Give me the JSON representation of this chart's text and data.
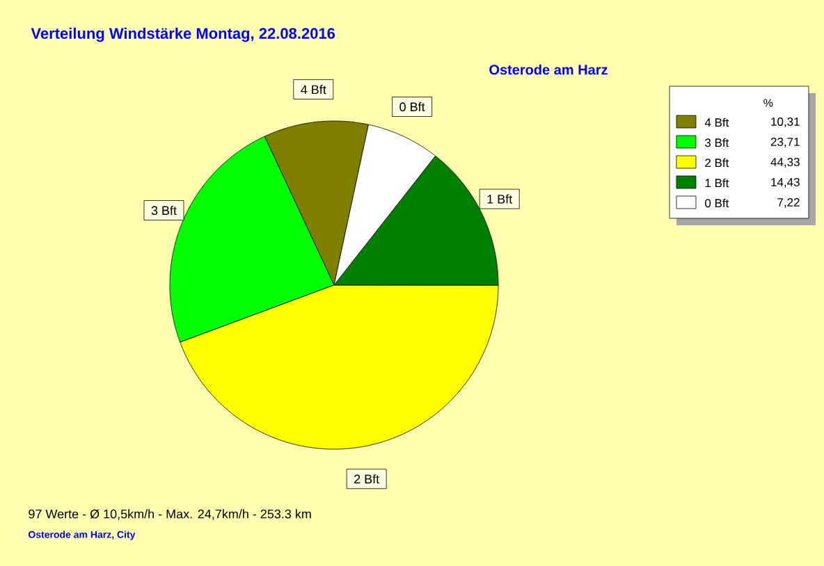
{
  "chart_data": {
    "type": "pie",
    "title": "Verteilung Windstärke  Montag, 22.08.2016",
    "subtitle": "Osterode am Harz",
    "legend_title": "%",
    "categories": [
      "4 Bft",
      "3 Bft",
      "2 Bft",
      "1 Bft",
      "0 Bft"
    ],
    "values": [
      10.31,
      23.71,
      44.33,
      14.43,
      7.22
    ],
    "value_labels": [
      "10,31",
      "23,71",
      "44,33",
      "14,43",
      "7,22"
    ],
    "colors": [
      "#808000",
      "#00ff00",
      "#ffff00",
      "#008000",
      "#ffffff"
    ],
    "legend": "top right",
    "annotations": [
      "97 Werte   -   Ø 10,5km/h  -  Max. 24,7km/h   -   253.3 km",
      "Osterode am Harz, City"
    ]
  }
}
